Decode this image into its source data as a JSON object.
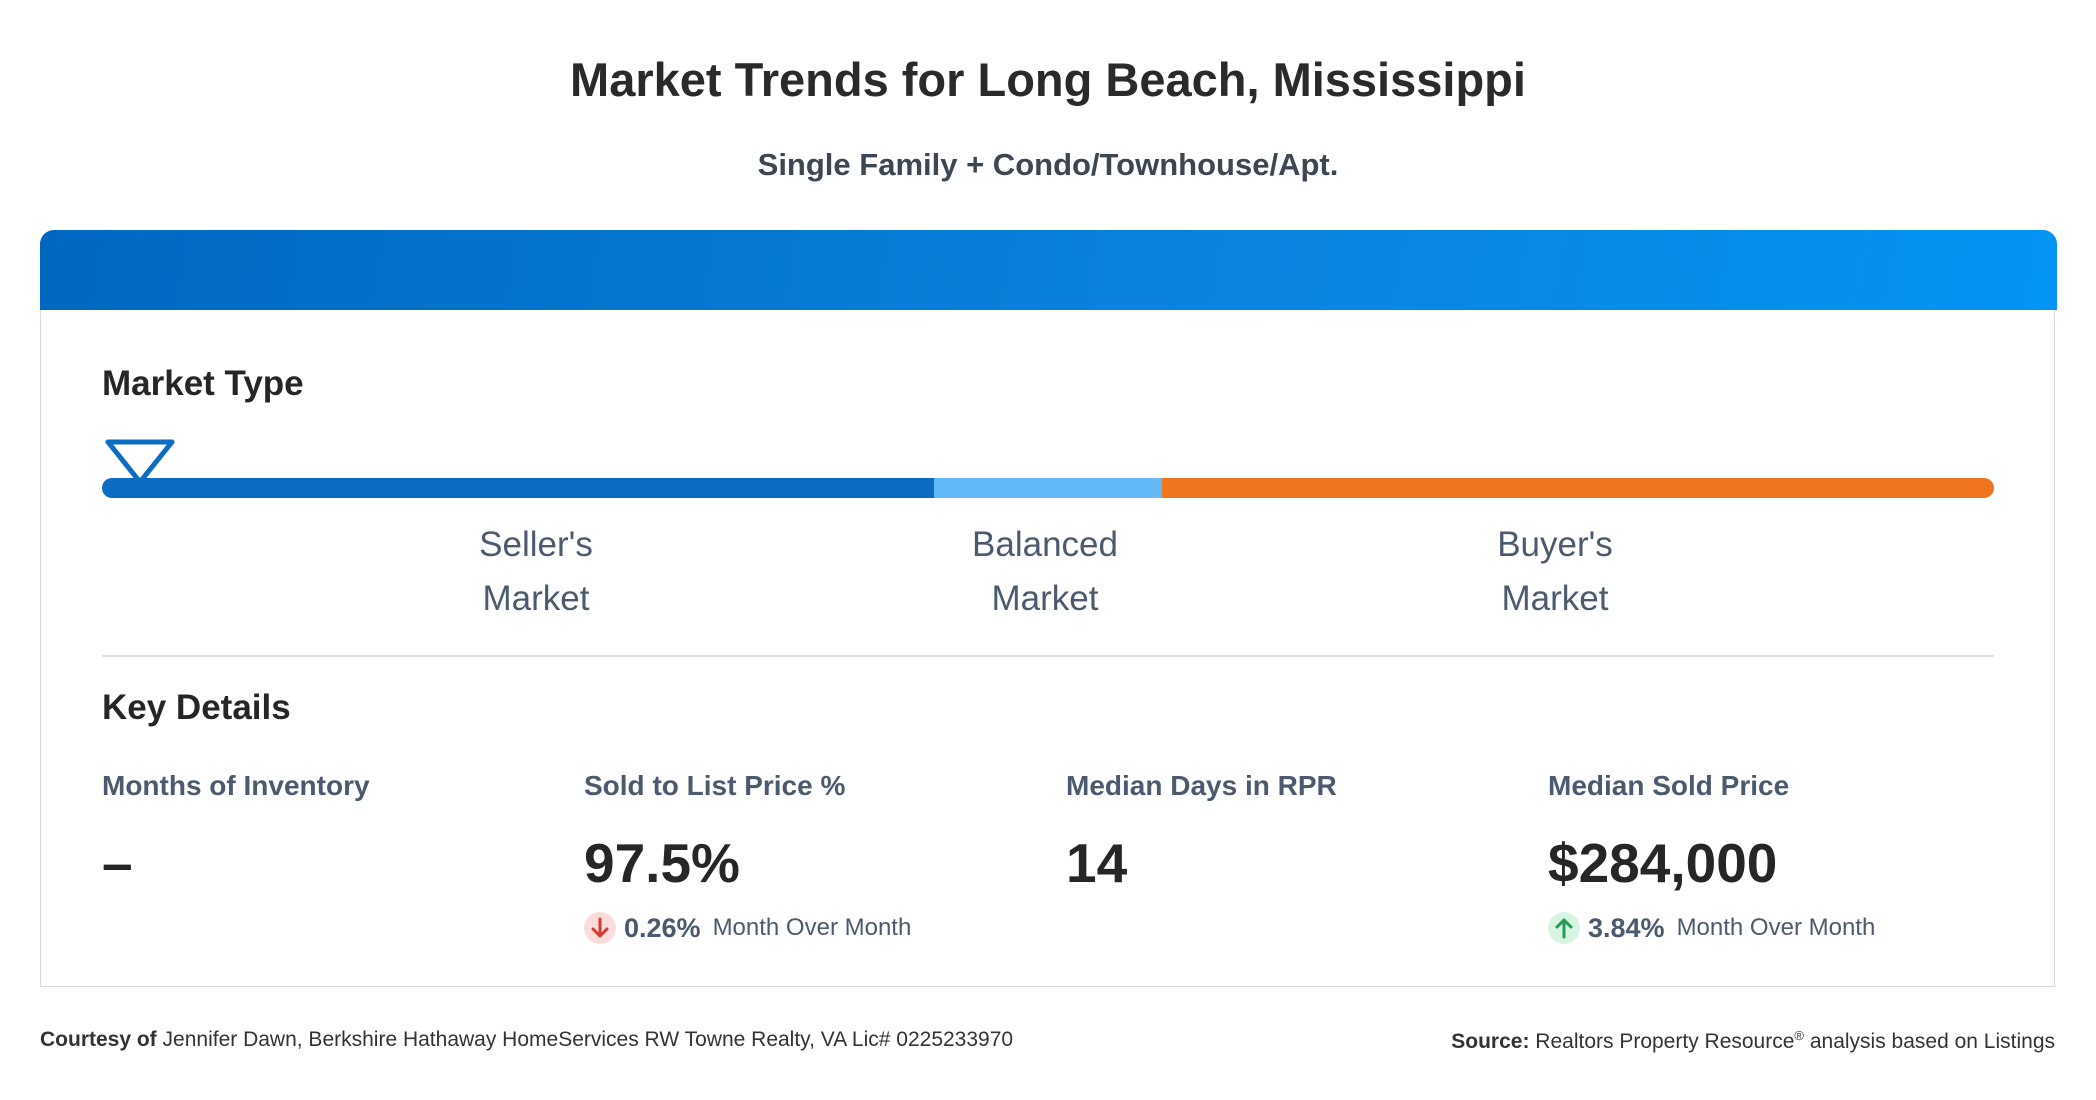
{
  "title": "Market Trends for Long Beach, Mississippi",
  "subtitle": "Single Family + Condo/Townhouse/Apt.",
  "market_type": {
    "heading": "Market Type",
    "indicator_position_percent": 2,
    "segments": [
      {
        "line1": "Seller's",
        "line2": "Market",
        "color": "#0a6cc2"
      },
      {
        "line1": "Balanced",
        "line2": "Market",
        "color": "#63b8f7"
      },
      {
        "line1": "Buyer's",
        "line2": "Market",
        "color": "#f0741f"
      }
    ]
  },
  "key_details": {
    "heading": "Key Details",
    "stats": [
      {
        "label": "Months of Inventory",
        "value": "–"
      },
      {
        "label": "Sold to List Price %",
        "value": "97.5%",
        "change_pct": "0.26%",
        "change_text": "Month Over Month",
        "direction": "down"
      },
      {
        "label": "Median Days in RPR",
        "value": "14"
      },
      {
        "label": "Median Sold Price",
        "value": "$284,000",
        "change_pct": "3.84%",
        "change_text": "Month Over Month",
        "direction": "up"
      }
    ]
  },
  "footer": {
    "courtesy_label": "Courtesy of",
    "courtesy_text": "Jennifer Dawn, Berkshire Hathaway HomeServices RW Towne Realty, VA Lic# 0225233970",
    "source_label": "Source:",
    "source_text_1": "Realtors Property Resource",
    "source_sup": "®",
    "source_text_2": "analysis based on Listings"
  },
  "colors": {
    "header_gradient_start": "#0067c0",
    "header_gradient_end": "#0494f4",
    "down_arrow": "#d93a2e",
    "up_arrow": "#1f9d55"
  }
}
